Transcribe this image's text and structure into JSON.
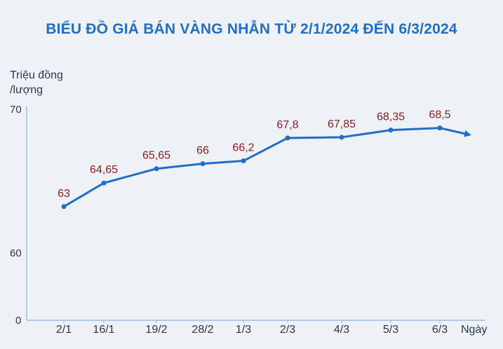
{
  "chart_data": {
    "type": "line",
    "title": "BIỂU ĐỒ GIÁ BÁN VÀNG NHẪN TỪ 2/1/2024 ĐẾN 6/3/2024",
    "ylabel_line1": "Triệu đồng",
    "ylabel_line2": "/lượng",
    "xlabel": "Ngày",
    "y_ticks": [
      "70",
      "60",
      "0"
    ],
    "categories": [
      "2/1",
      "16/1",
      "19/2",
      "28/2",
      "1/3",
      "2/3",
      "4/3",
      "5/3",
      "6/3"
    ],
    "values": [
      63,
      64.65,
      65.65,
      66,
      66.2,
      67.8,
      67.85,
      68.35,
      68.5
    ],
    "value_labels": [
      "63",
      "64,65",
      "65,65",
      "66",
      "66,2",
      "67,8",
      "67,85",
      "68,35",
      "68,5"
    ],
    "colors": {
      "title": "#1f6fc9",
      "line": "#1f6fc9",
      "value_label": "#8b1a1a",
      "axis_text": "#2a3550"
    }
  }
}
